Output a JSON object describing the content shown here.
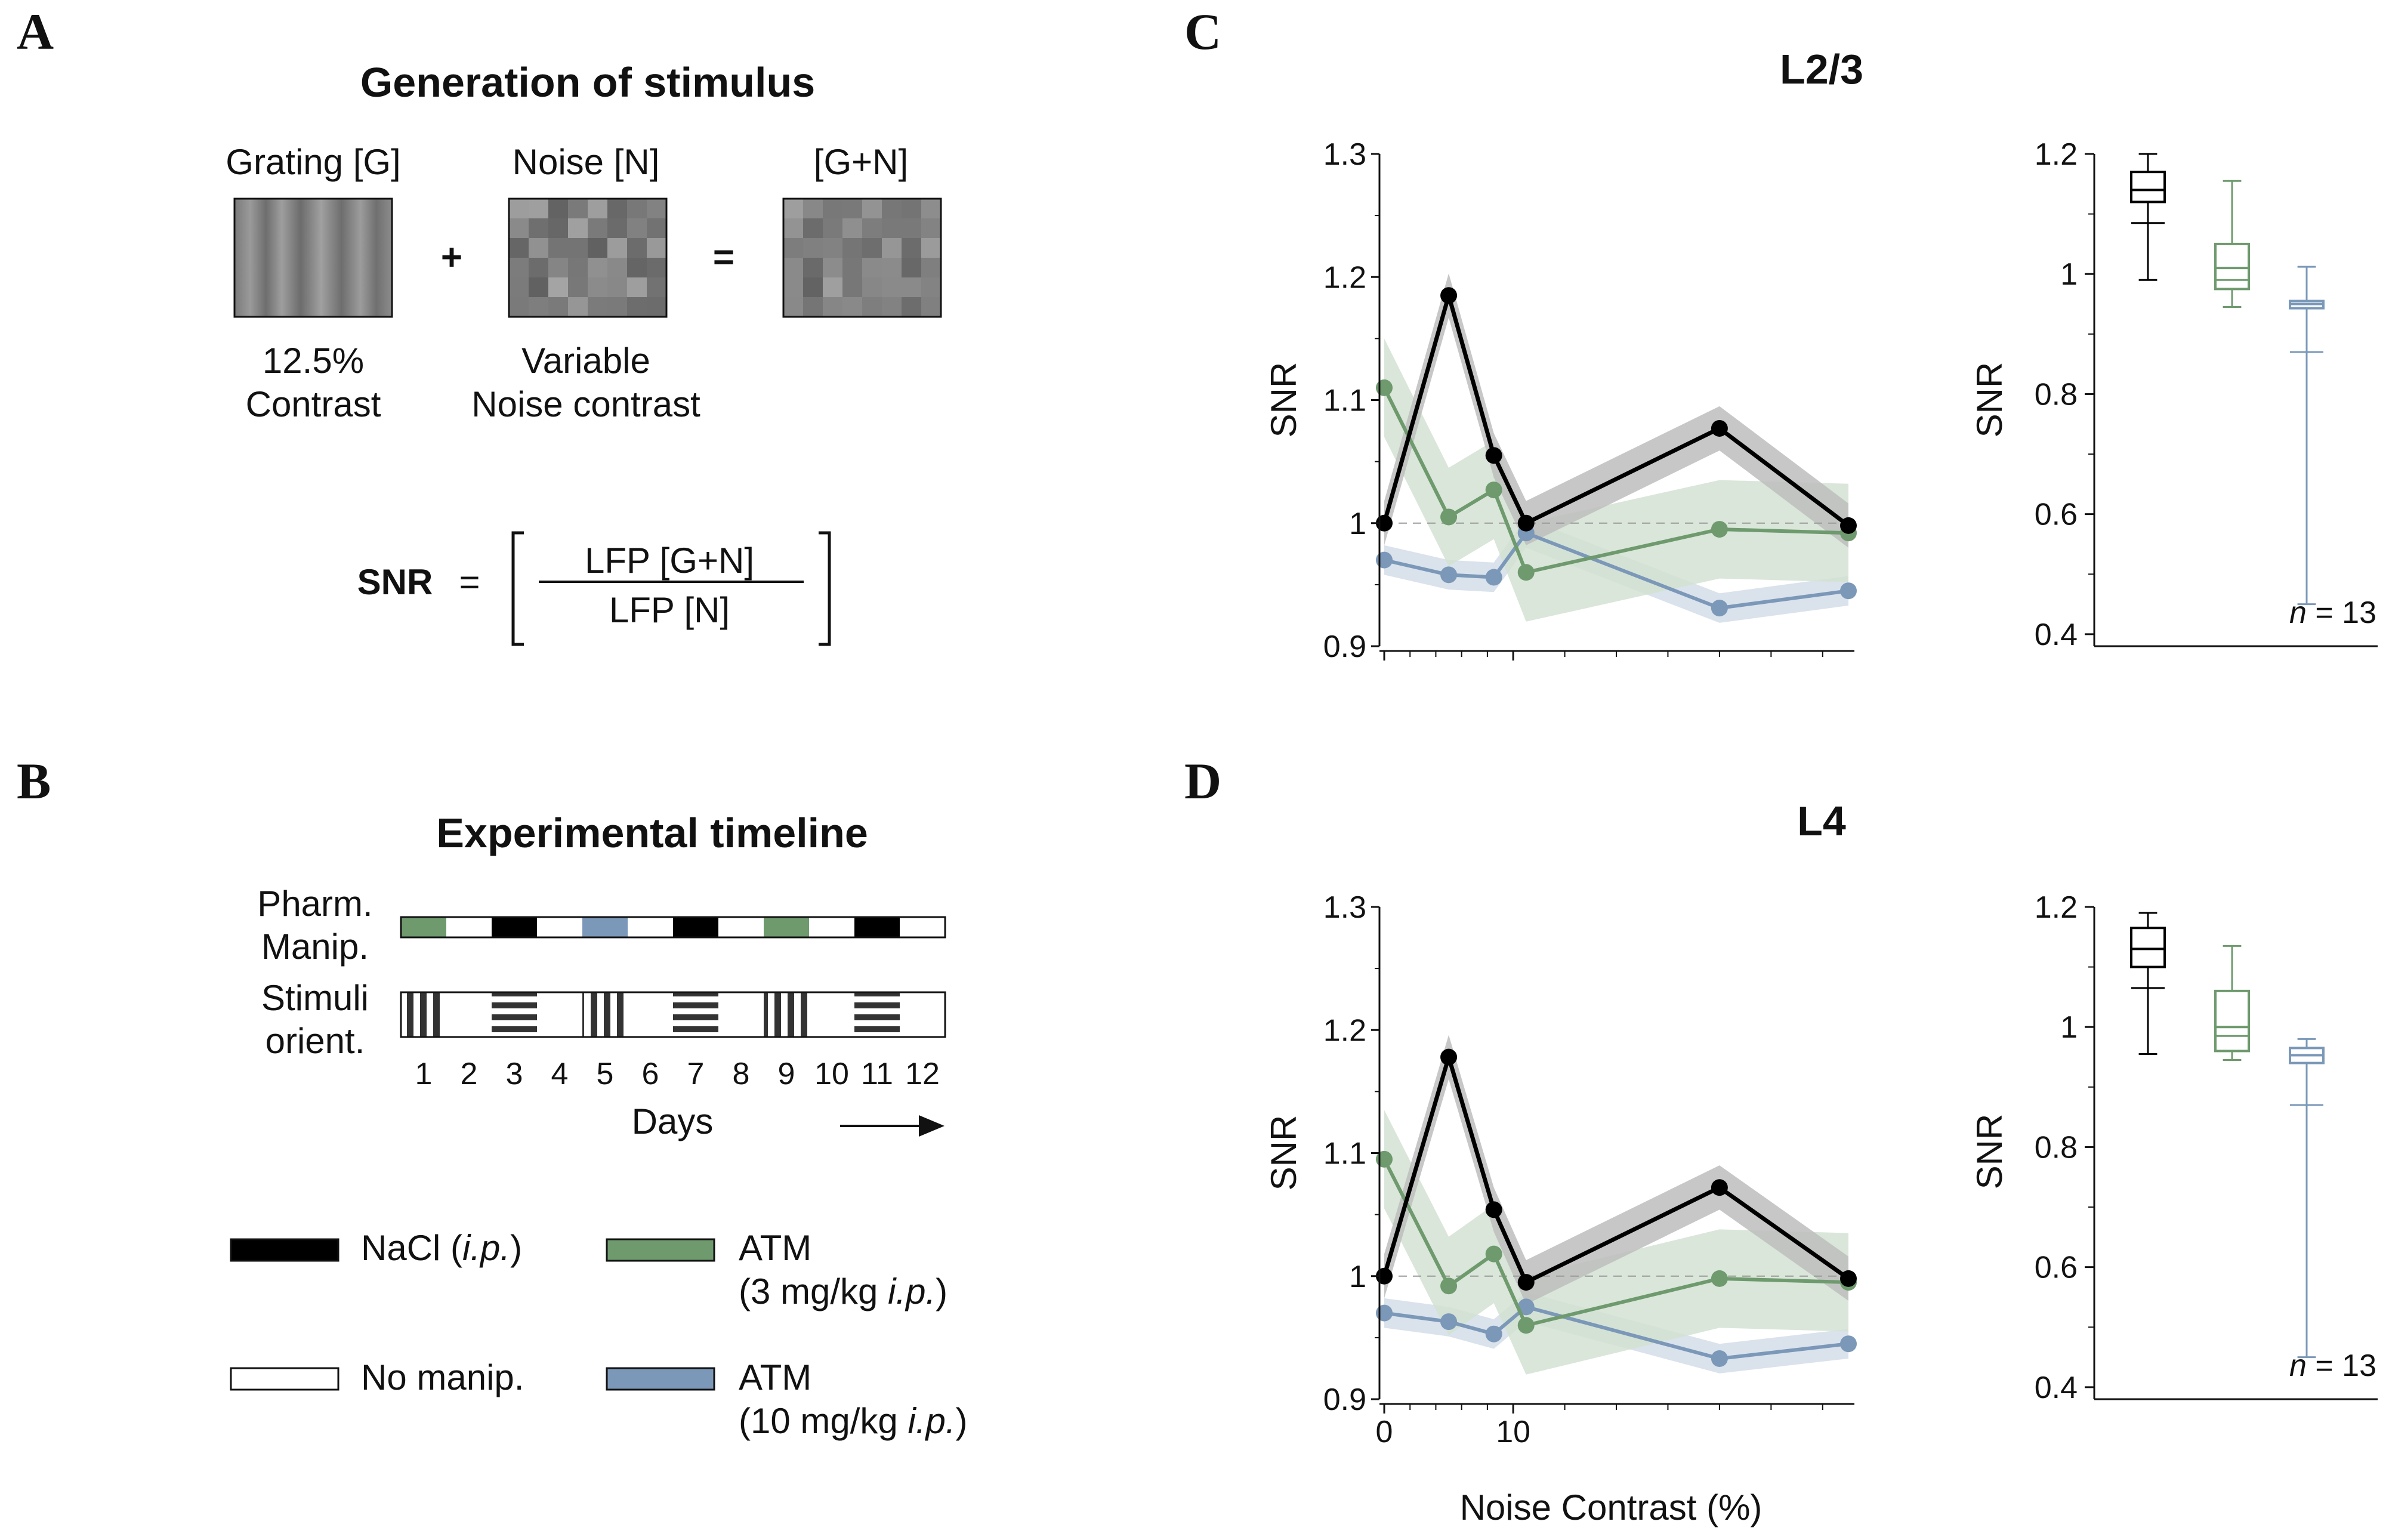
{
  "panels": {
    "a": "A",
    "b": "B",
    "c": "C",
    "d": "D"
  },
  "panelA": {
    "title": "Generation of stimulus",
    "grating_label": "Grating [G]",
    "noise_label": "Noise [N]",
    "sum_label": "[G+N]",
    "plus": "+",
    "equals": "=",
    "grating_caption1": "12.5%",
    "grating_caption2": "Contrast",
    "noise_caption1": "Variable",
    "noise_caption2": "Noise contrast",
    "snr_label": "SNR",
    "snr_eq": "=",
    "numerator": "LFP [G+N]",
    "denominator": "LFP [N]"
  },
  "panelB": {
    "title": "Experimental timeline",
    "row1_line1": "Pharm.",
    "row1_line2": "Manip.",
    "row2_line1": "Stimuli",
    "row2_line2": "orient.",
    "days": [
      "1",
      "2",
      "3",
      "4",
      "5",
      "6",
      "7",
      "8",
      "9",
      "10",
      "11",
      "12"
    ],
    "pharm": [
      "atm3",
      "none",
      "nacl",
      "none",
      "atm10",
      "none",
      "nacl",
      "none",
      "atm3",
      "none",
      "nacl",
      "none"
    ],
    "stim": [
      "vertical",
      "none",
      "horizontal",
      "none",
      "vertical",
      "none",
      "horizontal",
      "none",
      "vertical",
      "none",
      "horizontal",
      "none"
    ],
    "days_label": "Days",
    "legend": {
      "nacl": "NaCl (",
      "nacl_ip": "i.p.",
      "nacl_close": ")",
      "none": "No manip.",
      "atm3_1": "ATM",
      "atm3_2": "(3 mg/kg ",
      "atm3_ip": "i.p.",
      "atm3_close": ")",
      "atm10_1": "ATM",
      "atm10_2": "(10 mg/kg ",
      "atm10_ip": "i.p.",
      "atm10_close": ")"
    }
  },
  "colors": {
    "nacl": "#000000",
    "atm3": "#6e9a6e",
    "atm10": "#7b98b8",
    "nacl_band": "#bdbdbd",
    "atm3_band": "#d2e2d2",
    "atm10_band": "#d3dde9"
  },
  "xlabel": "Noise Contrast (%)",
  "xticks": [
    "0",
    "10"
  ],
  "n_label": "n",
  "n_value": "= 13",
  "chart_data": [
    {
      "type": "line",
      "title": "L2/3",
      "ylabel": "SNR",
      "ylim": [
        0.9,
        1.3
      ],
      "yticks": [
        "1.3",
        "1.2",
        "1.1",
        "1",
        "0.9"
      ],
      "x": [
        0,
        5,
        8.5,
        11,
        26,
        36
      ],
      "series": [
        {
          "name": "NaCl",
          "values": [
            1.0,
            1.185,
            1.055,
            1.0,
            1.077,
            0.998
          ],
          "sem": 0.018
        },
        {
          "name": "ATM 3 mg/kg",
          "values": [
            1.11,
            1.005,
            1.027,
            0.96,
            0.995,
            0.992
          ],
          "sem": 0.04
        },
        {
          "name": "ATM 10 mg/kg",
          "values": [
            0.97,
            0.958,
            0.956,
            0.992,
            0.931,
            0.945
          ],
          "sem": 0.012
        }
      ],
      "boxplot": {
        "ylabel": "SNR",
        "ylim": [
          0.38,
          1.2
        ],
        "yticks": [
          "1.2",
          "1",
          "0.8",
          "0.6",
          "0.4"
        ],
        "boxes": [
          {
            "name": "NaCl",
            "whisker_low": 0.99,
            "q1": 1.12,
            "median": 1.14,
            "q3": 1.17,
            "whisker_high": 1.2,
            "mean": 1.085
          },
          {
            "name": "ATM 3 mg/kg",
            "whisker_low": 0.945,
            "q1": 0.975,
            "median": 1.01,
            "q3": 1.05,
            "whisker_high": 1.155,
            "mean": 0.99
          },
          {
            "name": "ATM 10 mg/kg",
            "whisker_low": 0.45,
            "q1": 0.943,
            "median": 0.95,
            "q3": 0.955,
            "whisker_high": 1.012,
            "mean": 0.87
          }
        ]
      }
    },
    {
      "type": "line",
      "title": "L4",
      "ylabel": "SNR",
      "ylim": [
        0.9,
        1.3
      ],
      "yticks": [
        "1.3",
        "1.2",
        "1.1",
        "1",
        "0.9"
      ],
      "x": [
        0,
        5,
        8.5,
        11,
        26,
        36
      ],
      "series": [
        {
          "name": "NaCl",
          "values": [
            1.0,
            1.178,
            1.054,
            0.995,
            1.072,
            0.998
          ],
          "sem": 0.018
        },
        {
          "name": "ATM 3 mg/kg",
          "values": [
            1.095,
            0.992,
            1.018,
            0.96,
            0.998,
            0.995
          ],
          "sem": 0.04
        },
        {
          "name": "ATM 10 mg/kg",
          "values": [
            0.97,
            0.963,
            0.953,
            0.975,
            0.933,
            0.945
          ],
          "sem": 0.012
        }
      ],
      "boxplot": {
        "ylabel": "SNR",
        "ylim": [
          0.38,
          1.2
        ],
        "yticks": [
          "1.2",
          "1",
          "0.8",
          "0.6",
          "0.4"
        ],
        "boxes": [
          {
            "name": "NaCl",
            "whisker_low": 0.955,
            "q1": 1.1,
            "median": 1.13,
            "q3": 1.165,
            "whisker_high": 1.19,
            "mean": 1.065
          },
          {
            "name": "ATM 3 mg/kg",
            "whisker_low": 0.945,
            "q1": 0.96,
            "median": 1.0,
            "q3": 1.06,
            "whisker_high": 1.135,
            "mean": 0.985
          },
          {
            "name": "ATM 10 mg/kg",
            "whisker_low": 0.45,
            "q1": 0.94,
            "median": 0.953,
            "q3": 0.965,
            "whisker_high": 0.98,
            "mean": 0.87
          }
        ]
      }
    }
  ]
}
